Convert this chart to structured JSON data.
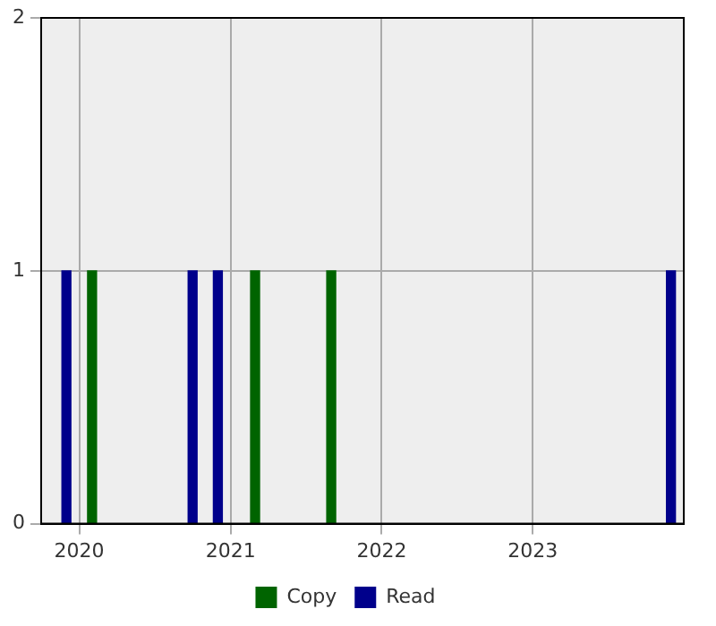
{
  "chart_data": {
    "type": "bar",
    "xlim": [
      "2019-10-01",
      "2024-01-01"
    ],
    "xticks": [
      "2020",
      "2021",
      "2022",
      "2023"
    ],
    "ylim": [
      0,
      2
    ],
    "yticks": [
      0,
      1,
      2
    ],
    "grid": true,
    "legend": "bottom",
    "series": [
      {
        "name": "Copy",
        "color": "#006400",
        "x": [
          "2020-02-01",
          "2021-03-01",
          "2021-09-01"
        ],
        "values": [
          1,
          1,
          1
        ]
      },
      {
        "name": "Read",
        "color": "#00008b",
        "x": [
          "2019-12-01",
          "2020-10-01",
          "2020-12-01",
          "2023-12-01"
        ],
        "values": [
          1,
          1,
          1,
          1
        ]
      }
    ]
  }
}
